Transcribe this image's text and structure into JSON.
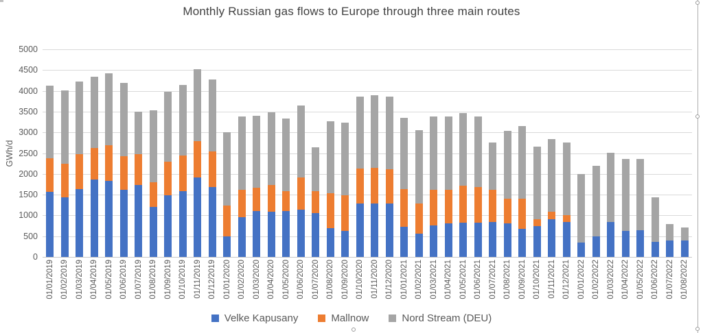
{
  "chart_data": {
    "type": "bar",
    "stacked": true,
    "title": "Monthly Russian gas flows to Europe through three main routes",
    "xlabel": "",
    "ylabel": "GWh/d",
    "ylim": [
      0,
      5000
    ],
    "yticks": [
      5000,
      4500,
      4000,
      3500,
      3000,
      2500,
      2000,
      1500,
      1000,
      500,
      0
    ],
    "grid": true,
    "legend_position": "bottom",
    "categories": [
      "01/01/2019",
      "01/02/2019",
      "01/03/2019",
      "01/04/2019",
      "01/05/2019",
      "01/06/2019",
      "01/07/2019",
      "01/08/2019",
      "01/09/2019",
      "01/10/2019",
      "01/11/2019",
      "01/12/2019",
      "01/01/2020",
      "01/02/2020",
      "01/03/2020",
      "01/04/2020",
      "01/05/2020",
      "01/06/2020",
      "01/07/2020",
      "01/08/2020",
      "01/09/2020",
      "01/10/2020",
      "01/11/2020",
      "01/12/2020",
      "01/01/2021",
      "01/02/2021",
      "01/03/2021",
      "01/04/2021",
      "01/05/2021",
      "01/06/2021",
      "01/07/2021",
      "01/08/2021",
      "01/09/2021",
      "01/10/2021",
      "01/11/2021",
      "01/12/2021",
      "01/01/2022",
      "01/02/2022",
      "01/03/2022",
      "01/04/2022",
      "01/05/2022",
      "01/06/2022",
      "01/07/2022",
      "01/08/2022"
    ],
    "series": [
      {
        "name": "Velke Kapusany",
        "color": "#4472C4",
        "values": [
          1560,
          1430,
          1640,
          1860,
          1840,
          1620,
          1730,
          1200,
          1480,
          1580,
          1910,
          1690,
          490,
          950,
          1100,
          1090,
          1110,
          1140,
          1060,
          690,
          620,
          1290,
          1290,
          1280,
          730,
          560,
          760,
          810,
          830,
          830,
          840,
          810,
          680,
          750,
          900,
          850,
          350,
          500,
          840,
          630,
          640,
          370,
          400,
          400
        ]
      },
      {
        "name": "Mallnow",
        "color": "#ED7D31",
        "values": [
          820,
          810,
          830,
          760,
          850,
          810,
          750,
          600,
          820,
          860,
          880,
          850,
          750,
          670,
          560,
          640,
          480,
          770,
          530,
          840,
          870,
          840,
          860,
          840,
          900,
          730,
          860,
          810,
          890,
          860,
          780,
          590,
          720,
          160,
          190,
          160,
          0,
          0,
          0,
          0,
          0,
          0,
          0,
          0
        ]
      },
      {
        "name": "Nord Stream (DEU)",
        "color": "#A5A5A5",
        "values": [
          1750,
          1770,
          1750,
          1720,
          1740,
          1760,
          1020,
          1730,
          1680,
          1710,
          1730,
          1730,
          1760,
          1770,
          1740,
          1750,
          1750,
          1740,
          1050,
          1740,
          1740,
          1740,
          1740,
          1750,
          1720,
          1760,
          1760,
          1760,
          1740,
          1690,
          1130,
          1630,
          1760,
          1750,
          1750,
          1740,
          1650,
          1700,
          1670,
          1730,
          1720,
          1070,
          400,
          310
        ]
      }
    ]
  },
  "axis_colors": {
    "tick_text": "#595959",
    "gridline": "#d9d9d9",
    "axis_line": "#c9c9c9"
  }
}
